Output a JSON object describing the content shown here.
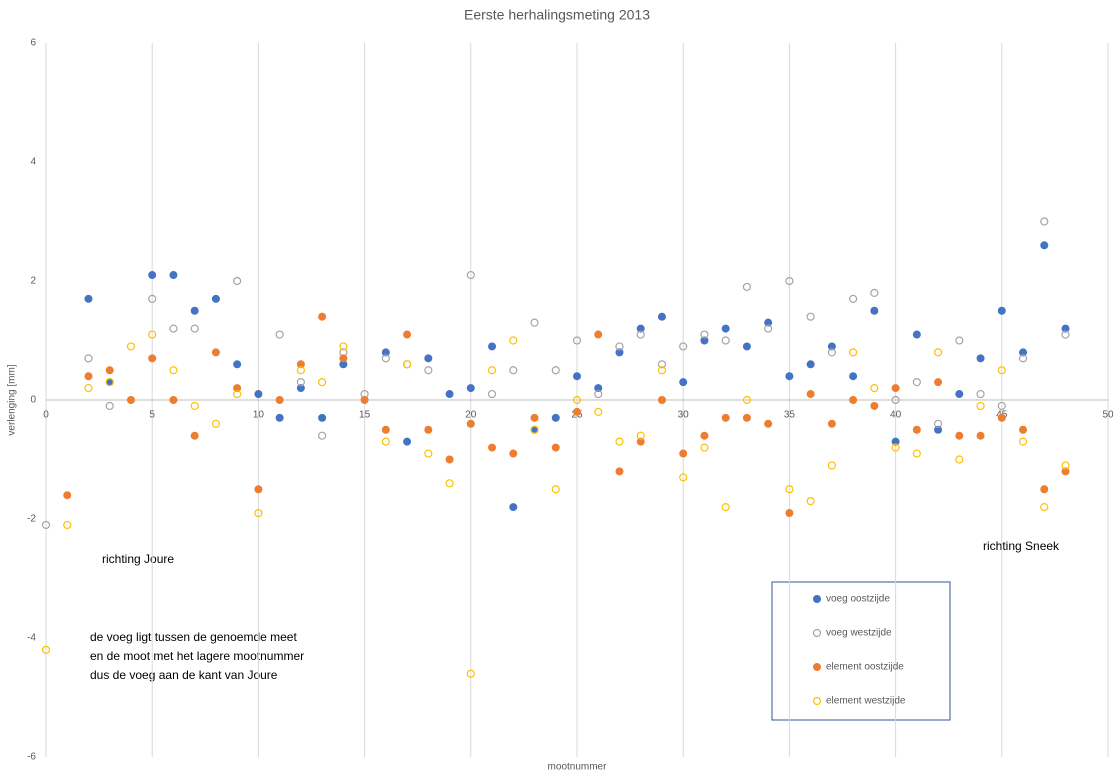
{
  "chart_data": {
    "type": "scatter",
    "title": "Eerste herhalingsmeting 2013",
    "x_label": "mootnummer",
    "y_label": "verlenging [mm]",
    "x": [
      0,
      1,
      2,
      3,
      4,
      5,
      6,
      7,
      8,
      9,
      10,
      11,
      12,
      13,
      14,
      15,
      16,
      17,
      18,
      19,
      20,
      21,
      22,
      23,
      24,
      25,
      26,
      27,
      28,
      29,
      30,
      31,
      32,
      33,
      34,
      35,
      36,
      37,
      38,
      39,
      40,
      41,
      42,
      43,
      44,
      45,
      46,
      47,
      48
    ],
    "series": [
      {
        "name": "voeg oostzijde",
        "color": "#4472c4",
        "hollow": false,
        "values": [
          null,
          null,
          1.7,
          0.3,
          null,
          2.1,
          2.1,
          1.5,
          1.7,
          0.6,
          0.1,
          -0.3,
          0.2,
          -0.3,
          0.6,
          null,
          0.8,
          -0.7,
          0.7,
          0.1,
          0.2,
          0.9,
          -1.8,
          -0.5,
          -0.3,
          0.4,
          0.2,
          0.8,
          1.2,
          1.4,
          0.3,
          1.0,
          1.2,
          0.9,
          1.3,
          0.4,
          0.6,
          0.9,
          0.4,
          1.5,
          -0.7,
          1.1,
          -0.5,
          0.1,
          0.7,
          1.5,
          0.8,
          2.6,
          1.2
        ]
      },
      {
        "name": "voeg westzijde",
        "color": "#a5a5a5",
        "hollow": true,
        "values": [
          -2.1,
          null,
          0.7,
          -0.1,
          null,
          1.7,
          1.2,
          1.2,
          null,
          2.0,
          null,
          1.1,
          0.3,
          -0.6,
          0.8,
          0.1,
          0.7,
          0.6,
          0.5,
          null,
          2.1,
          0.1,
          0.5,
          1.3,
          0.5,
          1.0,
          0.1,
          0.9,
          1.1,
          0.6,
          0.9,
          1.1,
          1.0,
          1.9,
          1.2,
          2.0,
          1.4,
          0.8,
          1.7,
          1.8,
          0.0,
          0.3,
          -0.4,
          1.0,
          0.1,
          -0.1,
          0.7,
          3.0,
          1.1
        ]
      },
      {
        "name": "element oostzijde",
        "color": "#ed7d31",
        "hollow": false,
        "values": [
          null,
          -1.6,
          0.4,
          0.5,
          0.0,
          0.7,
          0.0,
          -0.6,
          0.8,
          0.2,
          -1.5,
          0.0,
          0.6,
          1.4,
          0.7,
          0.0,
          -0.5,
          1.1,
          -0.5,
          -1.0,
          -0.4,
          -0.8,
          -0.9,
          -0.3,
          -0.8,
          -0.2,
          1.1,
          -1.2,
          -0.7,
          0.0,
          -0.9,
          -0.6,
          -0.3,
          -0.3,
          -0.4,
          -1.9,
          0.1,
          -0.4,
          0.0,
          -0.1,
          0.2,
          -0.5,
          0.3,
          -0.6,
          -0.6,
          -0.3,
          -0.5,
          -1.5,
          -1.2
        ]
      },
      {
        "name": "element westzijde",
        "color": "#ffc000",
        "hollow": true,
        "values": [
          -4.2,
          -2.1,
          0.2,
          0.3,
          0.9,
          1.1,
          0.5,
          -0.1,
          -0.4,
          0.1,
          -1.9,
          null,
          0.5,
          0.3,
          0.9,
          null,
          -0.7,
          0.6,
          -0.9,
          -1.4,
          -4.6,
          0.5,
          1.0,
          -0.5,
          -1.5,
          0.0,
          -0.2,
          -0.7,
          -0.6,
          0.5,
          -1.3,
          -0.8,
          -1.8,
          0.0,
          null,
          -1.5,
          -1.7,
          -1.1,
          0.8,
          0.2,
          -0.8,
          -0.9,
          0.8,
          -1.0,
          -0.1,
          0.5,
          -0.7,
          -1.8,
          -1.1
        ]
      }
    ],
    "xlim": [
      0,
      50
    ],
    "xticks": [
      0,
      5,
      10,
      15,
      20,
      25,
      30,
      35,
      40,
      45,
      50
    ],
    "ylim": [
      -6,
      6
    ],
    "yticks": [
      -6,
      -4,
      -2,
      0,
      2,
      4,
      6
    ],
    "grid": true,
    "annotations": [
      "richting Joure",
      "richting Sneek"
    ],
    "note": [
      "de voeg ligt tussen de genoemde meet",
      "en de moot met het lagere mootnummer",
      "dus de voeg aan de kant van Joure"
    ]
  }
}
